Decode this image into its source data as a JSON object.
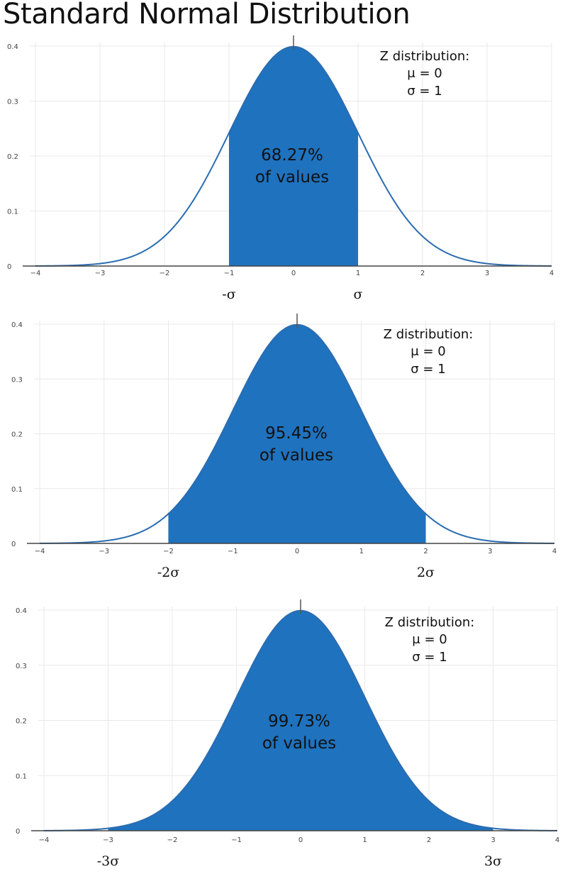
{
  "title": "Standard Normal Distribution",
  "colors": {
    "fill": "#1f72be",
    "curve": "#2b6cb0",
    "axis": "#444444",
    "grid": "#e8e8e8"
  },
  "chart_data": [
    {
      "type": "area",
      "x_range": [
        -4,
        4
      ],
      "y_range": [
        0,
        0.4
      ],
      "x_ticks": [
        "−4",
        "−3",
        "−2",
        "−1",
        "0",
        "1",
        "2",
        "3",
        "4"
      ],
      "y_ticks": [
        "0",
        "0.1",
        "0.2",
        "0.3",
        "0.4"
      ],
      "mean": 0,
      "std": 1,
      "shaded_range": [
        -1,
        1
      ],
      "grid": true,
      "legend": "none",
      "info_lines": [
        "Z distribution:",
        "μ = 0",
        "σ = 1"
      ],
      "center_lines": [
        "68.27%",
        "of values"
      ],
      "sigma_labels": [
        {
          "x": -1,
          "text": "-σ"
        },
        {
          "x": 1,
          "text": "σ"
        }
      ]
    },
    {
      "type": "area",
      "x_range": [
        -4,
        4
      ],
      "y_range": [
        0,
        0.4
      ],
      "x_ticks": [
        "−4",
        "−3",
        "−2",
        "−1",
        "0",
        "1",
        "2",
        "3",
        "4"
      ],
      "y_ticks": [
        "0",
        "0.1",
        "0.2",
        "0.3",
        "0.4"
      ],
      "mean": 0,
      "std": 1,
      "shaded_range": [
        -2,
        2
      ],
      "grid": true,
      "legend": "none",
      "info_lines": [
        "Z distribution:",
        "μ = 0",
        "σ = 1"
      ],
      "center_lines": [
        "95.45%",
        "of values"
      ],
      "sigma_labels": [
        {
          "x": -2,
          "text": "-2σ"
        },
        {
          "x": 2,
          "text": "2σ"
        }
      ]
    },
    {
      "type": "area",
      "x_range": [
        -4,
        4
      ],
      "y_range": [
        0,
        0.4
      ],
      "x_ticks": [
        "−4",
        "−3",
        "−2",
        "−1",
        "0",
        "1",
        "2",
        "3",
        "4"
      ],
      "y_ticks": [
        "0",
        "0.1",
        "0.2",
        "0.3",
        "0.4"
      ],
      "mean": 0,
      "std": 1,
      "shaded_range": [
        -3,
        3
      ],
      "grid": true,
      "legend": "none",
      "info_lines": [
        "Z distribution:",
        "μ = 0",
        "σ = 1"
      ],
      "center_lines": [
        "99.73%",
        "of values"
      ],
      "sigma_labels": [
        {
          "x": -3,
          "text": "-3σ"
        },
        {
          "x": 3,
          "text": "3σ"
        }
      ]
    }
  ]
}
